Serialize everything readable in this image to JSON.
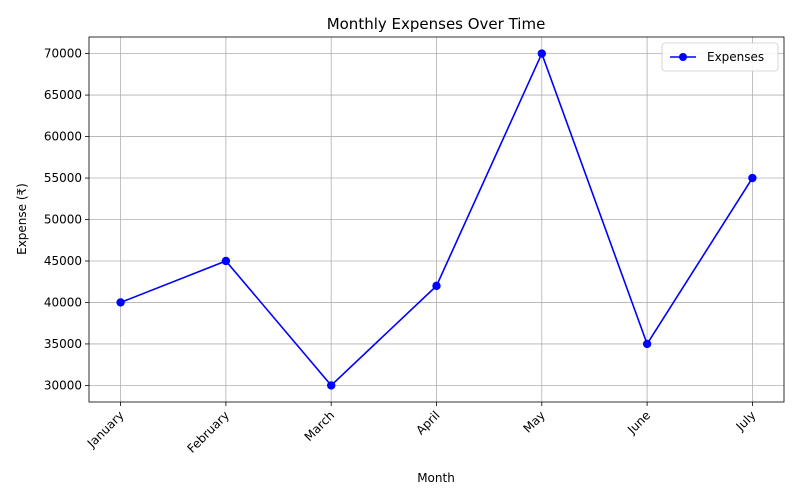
{
  "chart_data": {
    "type": "line",
    "title": "Monthly Expenses Over Time",
    "xlabel": "Month",
    "ylabel": "Expense (₹)",
    "categories": [
      "January",
      "February",
      "March",
      "April",
      "May",
      "June",
      "July"
    ],
    "series": [
      {
        "name": "Expenses",
        "values": [
          40000,
          45000,
          30000,
          42000,
          70000,
          35000,
          55000
        ],
        "color": "#0000ff",
        "marker": "circle"
      }
    ],
    "yticks": [
      30000,
      35000,
      40000,
      45000,
      50000,
      55000,
      60000,
      65000,
      70000
    ],
    "ylim": [
      28000,
      72000
    ],
    "grid": true,
    "legend_position": "top-right",
    "x_tick_rotation": 45
  }
}
